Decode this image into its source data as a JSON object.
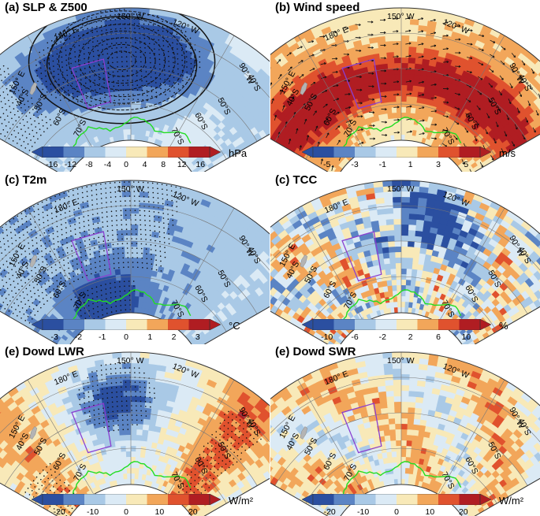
{
  "figure": {
    "panels": [
      {
        "id": "a",
        "title": "(a) SLP & Z500",
        "unit": "hPa",
        "ticks": [
          "-16",
          "-12",
          "-8",
          "-4",
          "0",
          "4",
          "8",
          "12",
          "16"
        ],
        "lon_labels": [
          "150° W",
          "180° E",
          "120° W",
          "150° E",
          "90° W"
        ],
        "lat_labels": [
          "40°S",
          "50°S",
          "60°S",
          "70°S",
          "40°S",
          "50°S",
          "60°S",
          "70°S"
        ],
        "variables": [
          "sea-level pressure",
          "geopotential height 500 hPa"
        ]
      },
      {
        "id": "b",
        "title": "(b) Wind speed",
        "unit": "m/s",
        "ticks": [
          "-5",
          "-3",
          "-1",
          "1",
          "3",
          "5"
        ],
        "lon_labels": [
          "150° W",
          "180° E",
          "120° W",
          "150° E",
          "90° W"
        ],
        "lat_labels": [
          "40°S",
          "50°S",
          "60°S",
          "70°S",
          "40°S",
          "50°S",
          "60°S",
          "70°S"
        ],
        "variables": [
          "wind speed",
          "wind vectors"
        ]
      },
      {
        "id": "c1",
        "title": "(c) T2m",
        "unit": "°C",
        "ticks": [
          "-3",
          "-2",
          "-1",
          "0",
          "1",
          "2",
          "3"
        ],
        "lon_labels": [
          "150° W",
          "180° E",
          "120° W",
          "150° E",
          "90° W"
        ],
        "lat_labels": [
          "40°S",
          "50°S",
          "60°S",
          "70°S",
          "40°S",
          "50°S",
          "60°S",
          "70°S"
        ],
        "variables": [
          "2 m temperature"
        ]
      },
      {
        "id": "c2",
        "title": "(c) TCC",
        "unit": "%",
        "ticks": [
          "-10",
          "-6",
          "-2",
          "2",
          "6",
          "10"
        ],
        "lon_labels": [
          "150° W",
          "180° E",
          "120° W",
          "150° E",
          "90° W"
        ],
        "lat_labels": [
          "40°S",
          "50°S",
          "60°S",
          "70°S",
          "40°S",
          "50°S",
          "60°S",
          "70°S"
        ],
        "variables": [
          "total cloud cover"
        ]
      },
      {
        "id": "e1",
        "title": "(e) Dowd LWR",
        "unit": "W/m²",
        "ticks": [
          "-20",
          "-10",
          "0",
          "10",
          "20"
        ],
        "lon_labels": [
          "150° W",
          "180° E",
          "120° W",
          "150° E",
          "90° W"
        ],
        "lat_labels": [
          "40°S",
          "50°S",
          "60°S",
          "70°S",
          "40°S",
          "50°S",
          "60°S",
          "70°S"
        ],
        "variables": [
          "downward longwave radiation"
        ]
      },
      {
        "id": "e2",
        "title": "(e) Dowd SWR",
        "unit": "W/m²",
        "ticks": [
          "-20",
          "-10",
          "0",
          "10",
          "20"
        ],
        "lon_labels": [
          "150° W",
          "180° E",
          "120° W",
          "150° E",
          "90° W"
        ],
        "lat_labels": [
          "40°S",
          "50°S",
          "60°S",
          "70°S",
          "40°S",
          "50°S",
          "60°S",
          "70°S"
        ],
        "variables": [
          "downward shortwave radiation"
        ]
      }
    ],
    "palette": {
      "dark_blue": "#2b4fa0",
      "blue": "#5b84c4",
      "light_blue": "#a9c9e6",
      "pale_blue": "#dbeaf5",
      "pale_yellow": "#f8e9b8",
      "orange": "#f2a65a",
      "red": "#e0522e",
      "dark_red": "#b01d22",
      "sea_ice_edge": "#22dd22",
      "box": "#8a3fd1"
    }
  }
}
